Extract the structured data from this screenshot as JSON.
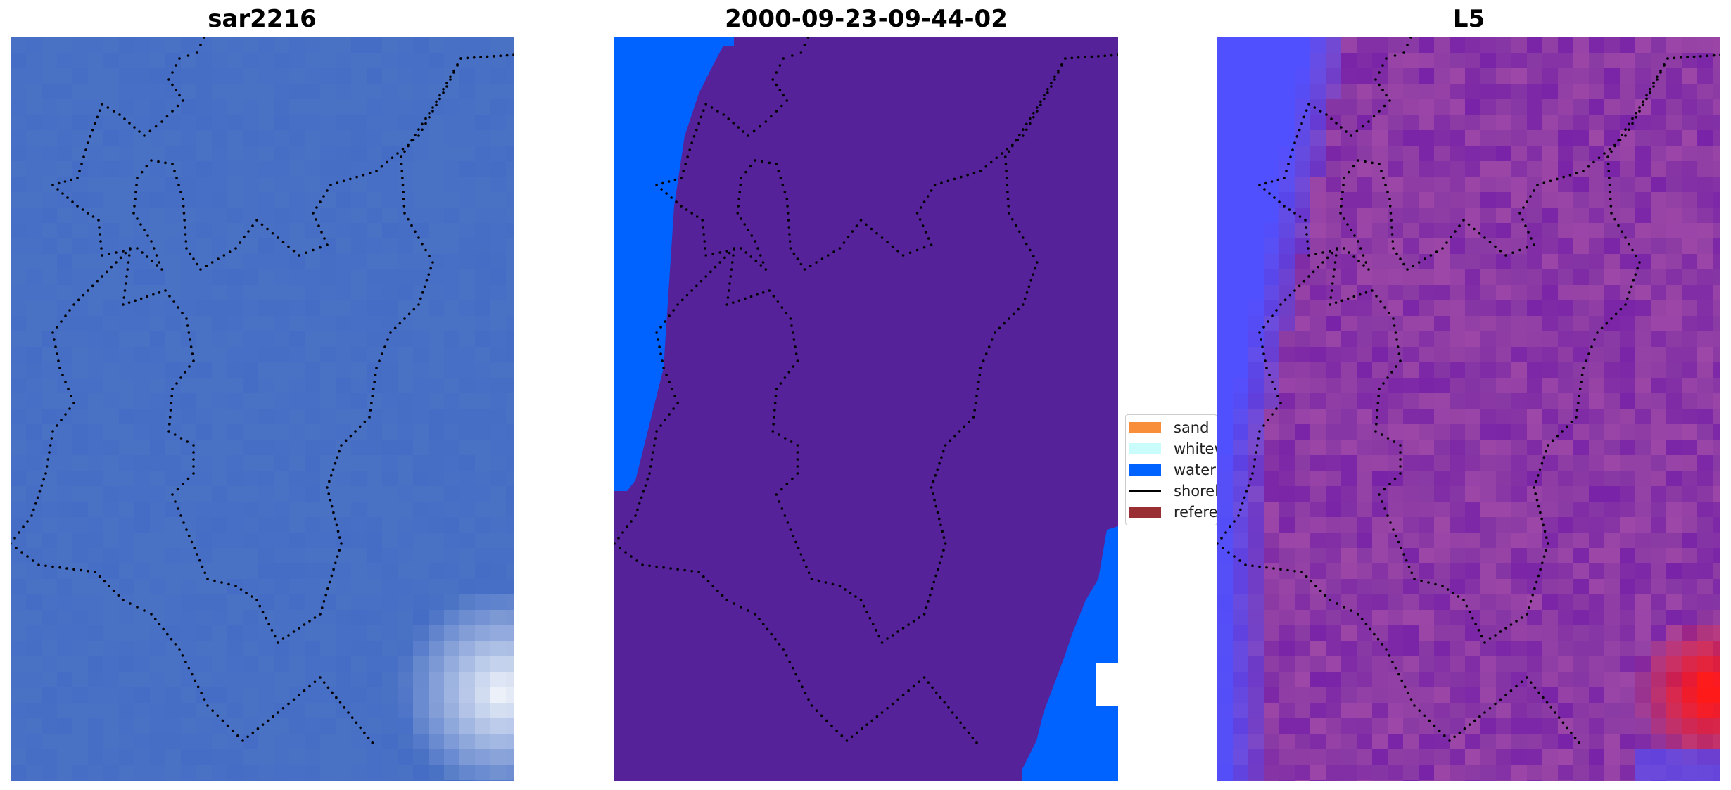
{
  "panels": [
    {
      "title": "sar2216"
    },
    {
      "title": "2000-09-23-09-44-02"
    },
    {
      "title": "L5"
    }
  ],
  "legend": {
    "items": [
      {
        "label": "sand",
        "color": "#f98e3a",
        "kind": "patch"
      },
      {
        "label": "whitewater",
        "color": "#c9fcfb",
        "kind": "patch"
      },
      {
        "label": "water",
        "color": "#0062ff",
        "kind": "patch"
      },
      {
        "label": "shoreline",
        "color": "#000000",
        "kind": "line"
      },
      {
        "label": "reference",
        "color": "#9a2f33",
        "kind": "patch"
      }
    ]
  },
  "colors": {
    "sar_base": "#4a72c4",
    "class_sand": "#55229a",
    "class_water": "#0062ff",
    "l5_base": "#8a3aa4",
    "l5_hot": "#ff1a1a",
    "l5_cold": "#5050ff"
  }
}
